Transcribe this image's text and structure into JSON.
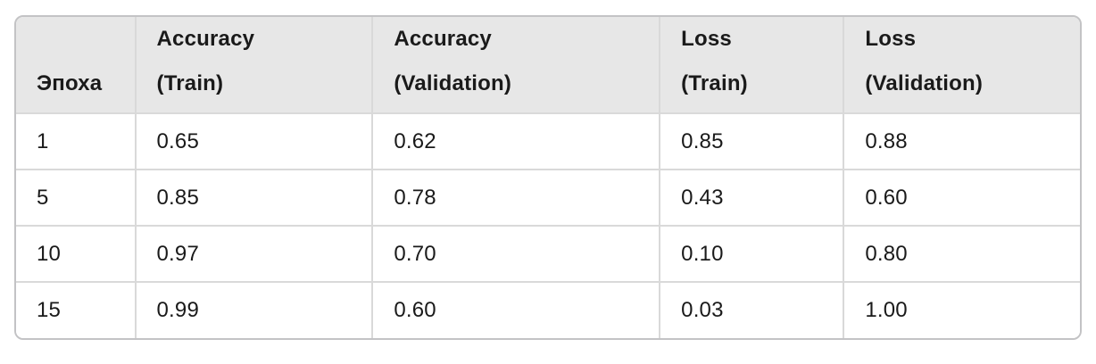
{
  "chart_data": {
    "type": "table",
    "title": "",
    "columns": [
      "Эпоха",
      "Accuracy (Train)",
      "Accuracy (Validation)",
      "Loss (Train)",
      "Loss (Validation)"
    ],
    "rows": [
      [
        1,
        0.65,
        0.62,
        0.85,
        0.88
      ],
      [
        5,
        0.85,
        0.78,
        0.43,
        0.6
      ],
      [
        10,
        0.97,
        0.7,
        0.1,
        0.8
      ],
      [
        15,
        0.99,
        0.6,
        0.03,
        1.0
      ]
    ]
  },
  "table": {
    "columns": [
      {
        "line1": "Эпоха",
        "line2": ""
      },
      {
        "line1": "Accuracy",
        "line2": "(Train)"
      },
      {
        "line1": "Accuracy",
        "line2": "(Validation)"
      },
      {
        "line1": "Loss",
        "line2": "(Train)"
      },
      {
        "line1": "Loss",
        "line2": "(Validation)"
      }
    ],
    "rows": [
      [
        "1",
        "0.65",
        "0.62",
        "0.85",
        "0.88"
      ],
      [
        "5",
        "0.85",
        "0.78",
        "0.43",
        "0.60"
      ],
      [
        "10",
        "0.97",
        "0.70",
        "0.10",
        "0.80"
      ],
      [
        "15",
        "0.99",
        "0.60",
        "0.03",
        "1.00"
      ]
    ]
  },
  "colors": {
    "header_background": "#e7e7e7",
    "outer_border": "#c3c3c5",
    "grid_line": "#d9d9d9",
    "text": "#1a1a1a",
    "page_background": "#ffffff"
  }
}
